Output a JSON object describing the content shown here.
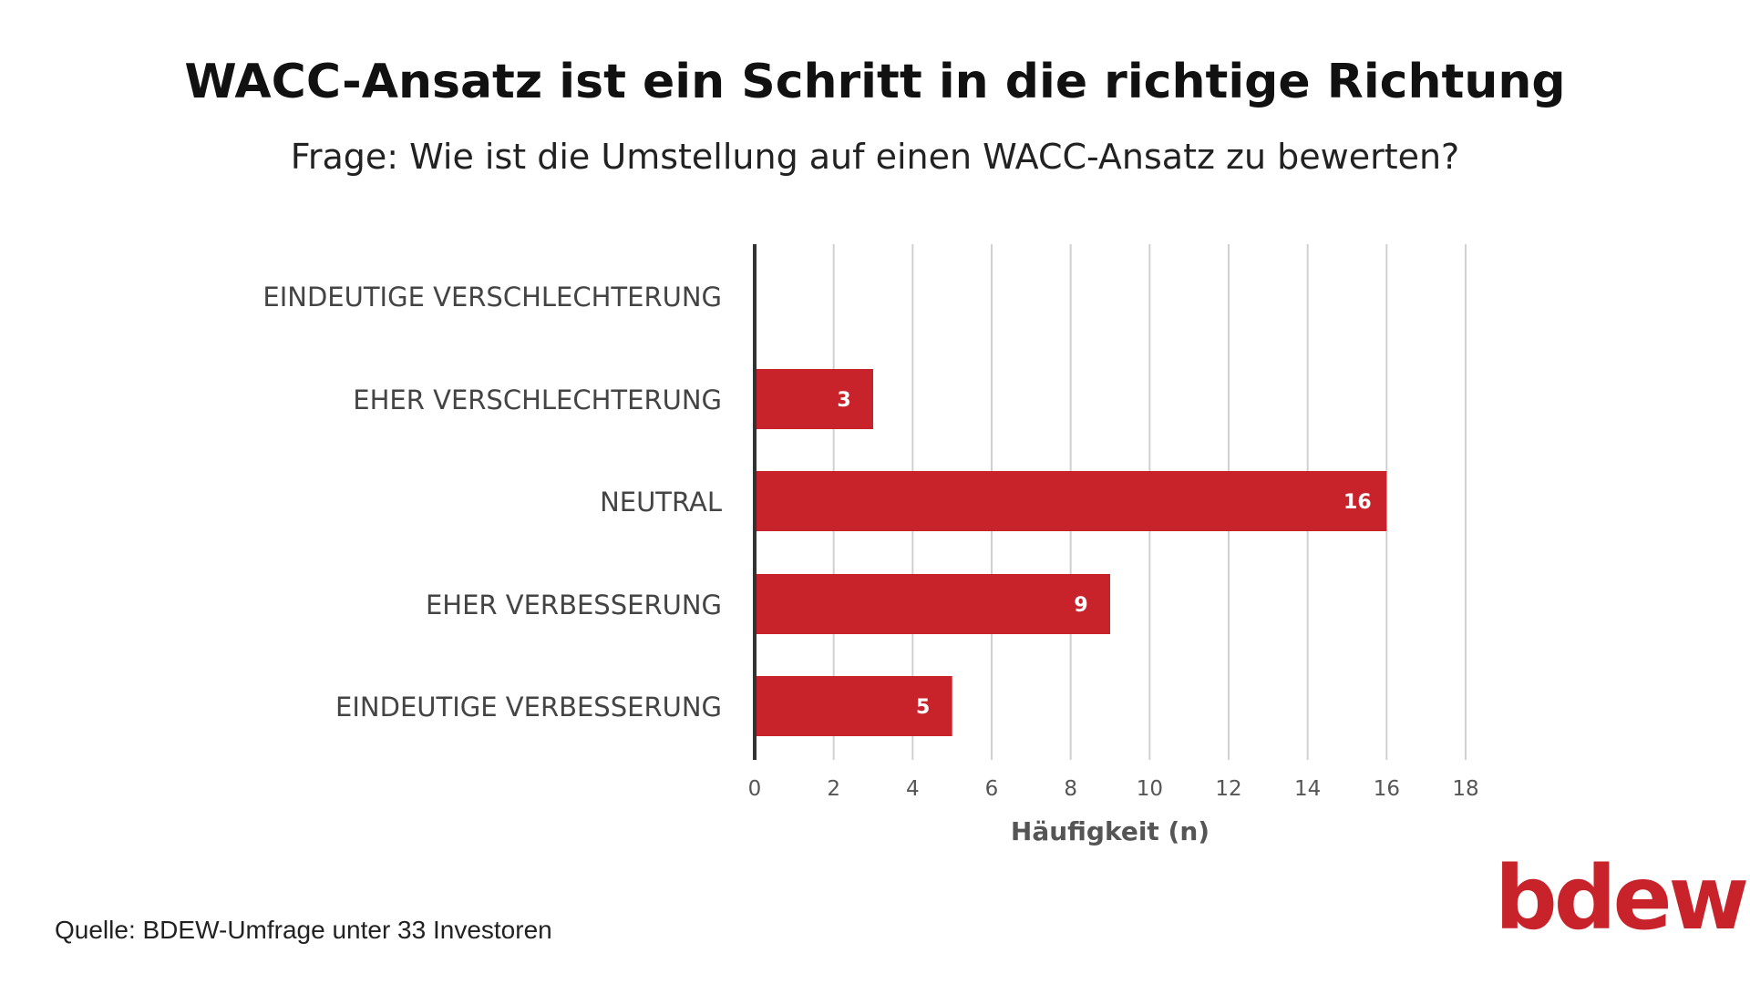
{
  "header": {
    "title": "WACC-Ansatz ist ein Schritt in die richtige Richtung",
    "subtitle": "Frage: Wie ist die Umstellung auf einen WACC-Ansatz zu bewerten?"
  },
  "footer": {
    "source": "Quelle: BDEW-Umfrage unter 33 Investoren",
    "logo_text": "bdew"
  },
  "colors": {
    "bar": "#C8232B",
    "logo": "#C8232B",
    "grid": "#D0D0D0",
    "axis": "#333333",
    "category_text": "#444444",
    "tick_text": "#555555"
  },
  "chart_data": {
    "type": "bar",
    "orientation": "horizontal",
    "title": "WACC-Ansatz ist ein Schritt in die richtige Richtung",
    "subtitle": "Frage: Wie ist die Umstellung auf einen WACC-Ansatz zu bewerten?",
    "categories": [
      "EINDEUTIGE VERSCHLECHTERUNG",
      "EHER VERSCHLECHTERUNG",
      "NEUTRAL",
      "EHER VERBESSERUNG",
      "EINDEUTIGE VERBESSERUNG"
    ],
    "values": [
      0,
      3,
      16,
      9,
      5
    ],
    "data_labels": [
      "",
      "3",
      "16",
      "9",
      "5"
    ],
    "xlabel": "Häufigkeit (n)",
    "ylabel": "",
    "xlim": [
      0,
      18
    ],
    "xticks": [
      0,
      2,
      4,
      6,
      8,
      10,
      12,
      14,
      16,
      18
    ],
    "grid": "vertical",
    "legend": "none"
  }
}
